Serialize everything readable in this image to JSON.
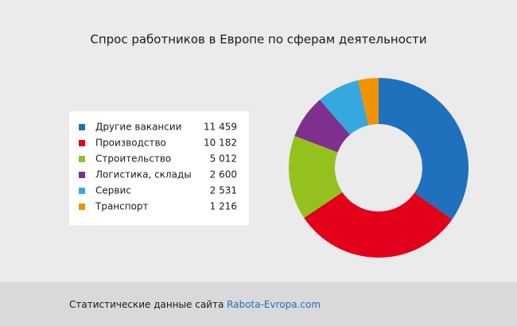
{
  "chart_data": {
    "type": "pie",
    "title": "Спрос работников в Европе по сферам деятельности",
    "categories": [
      "Другие вакансии",
      "Производство",
      "Строительство",
      "Логистика, склады",
      "Сервис",
      "Транспорт"
    ],
    "values": [
      11459,
      10182,
      5012,
      2600,
      2531,
      1216
    ],
    "value_labels": [
      "11 459",
      "10 182",
      "5 012",
      "2 600",
      "2 531",
      "1 216"
    ],
    "colors": [
      "#1f70bd",
      "#e2001a",
      "#95c11f",
      "#7d318c",
      "#35a8e0",
      "#f39200"
    ]
  },
  "footer": {
    "text": "Статистические данные сайта",
    "link": "Rabota-Evropa.com"
  }
}
